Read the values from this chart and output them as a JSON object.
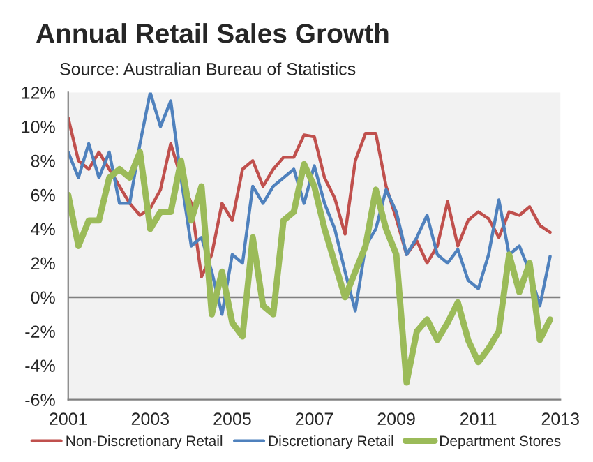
{
  "chart_data": {
    "type": "line",
    "title": "Annual Retail Sales Growth",
    "annotations": [
      "Source: Australian Bureau of Statistics"
    ],
    "x": [
      2001.0,
      2001.25,
      2001.5,
      2001.75,
      2002.0,
      2002.25,
      2002.5,
      2002.75,
      2003.0,
      2003.25,
      2003.5,
      2003.75,
      2004.0,
      2004.25,
      2004.5,
      2004.75,
      2005.0,
      2005.25,
      2005.5,
      2005.75,
      2006.0,
      2006.25,
      2006.5,
      2006.75,
      2007.0,
      2007.25,
      2007.5,
      2007.75,
      2008.0,
      2008.25,
      2008.5,
      2008.75,
      2009.0,
      2009.25,
      2009.5,
      2009.75,
      2010.0,
      2010.25,
      2010.5,
      2010.75,
      2011.0,
      2011.25,
      2011.5,
      2011.75,
      2012.0,
      2012.25,
      2012.5,
      2012.75
    ],
    "series": [
      {
        "name": "Non-Discretionary Retail",
        "color": "#c0504d",
        "values": [
          10.5,
          8,
          7.5,
          8.5,
          7.5,
          6.5,
          5.5,
          4.8,
          5.2,
          6.3,
          9,
          7,
          5.5,
          1.2,
          2.5,
          5.5,
          4.5,
          7.5,
          8,
          6.5,
          7.5,
          8.2,
          8.2,
          9.5,
          9.4,
          7,
          5.8,
          3.7,
          8,
          9.6,
          9.6,
          6.5,
          4.6,
          2.5,
          3.3,
          2,
          3,
          5.6,
          3,
          4.5,
          5,
          4.6,
          3.5,
          5,
          4.8,
          5.3,
          4.2,
          3.8
        ]
      },
      {
        "name": "Discretionary Retail",
        "color": "#4f81bd",
        "values": [
          8.5,
          7,
          9,
          7,
          8.5,
          5.5,
          5.5,
          9,
          12,
          10,
          11.5,
          7,
          3,
          3.5,
          1.5,
          -1,
          2.5,
          2,
          6.5,
          5.5,
          6.5,
          7,
          7.5,
          5.5,
          7.7,
          5.5,
          4,
          1.5,
          -0.8,
          3,
          4,
          6.3,
          5,
          2.5,
          3.5,
          4.8,
          2.5,
          2,
          2.8,
          1,
          0.5,
          2.5,
          5.7,
          2.5,
          3,
          1.5,
          -0.5,
          2.4
        ]
      },
      {
        "name": "Department Stores",
        "color": "#9bbb59",
        "values": [
          6,
          3,
          4.5,
          4.5,
          7,
          7.5,
          7,
          8.5,
          4,
          5,
          5,
          8,
          4.5,
          6.5,
          -1,
          1.5,
          -1.5,
          -2.3,
          3.5,
          -0.5,
          -1,
          4.5,
          5,
          7.8,
          6.5,
          4,
          2,
          0,
          1.5,
          3,
          6.3,
          4,
          2.5,
          -5,
          -2,
          -1.3,
          -2.5,
          -1.5,
          -0.3,
          -2.5,
          -3.8,
          -3,
          -2,
          2.5,
          0.3,
          2,
          -2.5,
          -1.3
        ]
      }
    ],
    "xlim": [
      2001,
      2013
    ],
    "xticks": [
      2001,
      2003,
      2005,
      2007,
      2009,
      2011,
      2013
    ],
    "ylim": [
      -6,
      12
    ],
    "yticks": [
      {
        "value": -6,
        "label": "-6%"
      },
      {
        "value": -4,
        "label": "-4%"
      },
      {
        "value": -2,
        "label": "-2%"
      },
      {
        "value": 0,
        "label": "0%"
      },
      {
        "value": 2,
        "label": "2%"
      },
      {
        "value": 4,
        "label": "4%"
      },
      {
        "value": 6,
        "label": "6%"
      },
      {
        "value": 8,
        "label": "8%"
      },
      {
        "value": 10,
        "label": "10%"
      },
      {
        "value": 12,
        "label": "12%"
      }
    ],
    "ref_lines": [
      {
        "axis": "y",
        "value": 0,
        "color": "#808080"
      }
    ],
    "grid": false,
    "legend": "bottom",
    "marker": "none",
    "line_style": "solid"
  }
}
